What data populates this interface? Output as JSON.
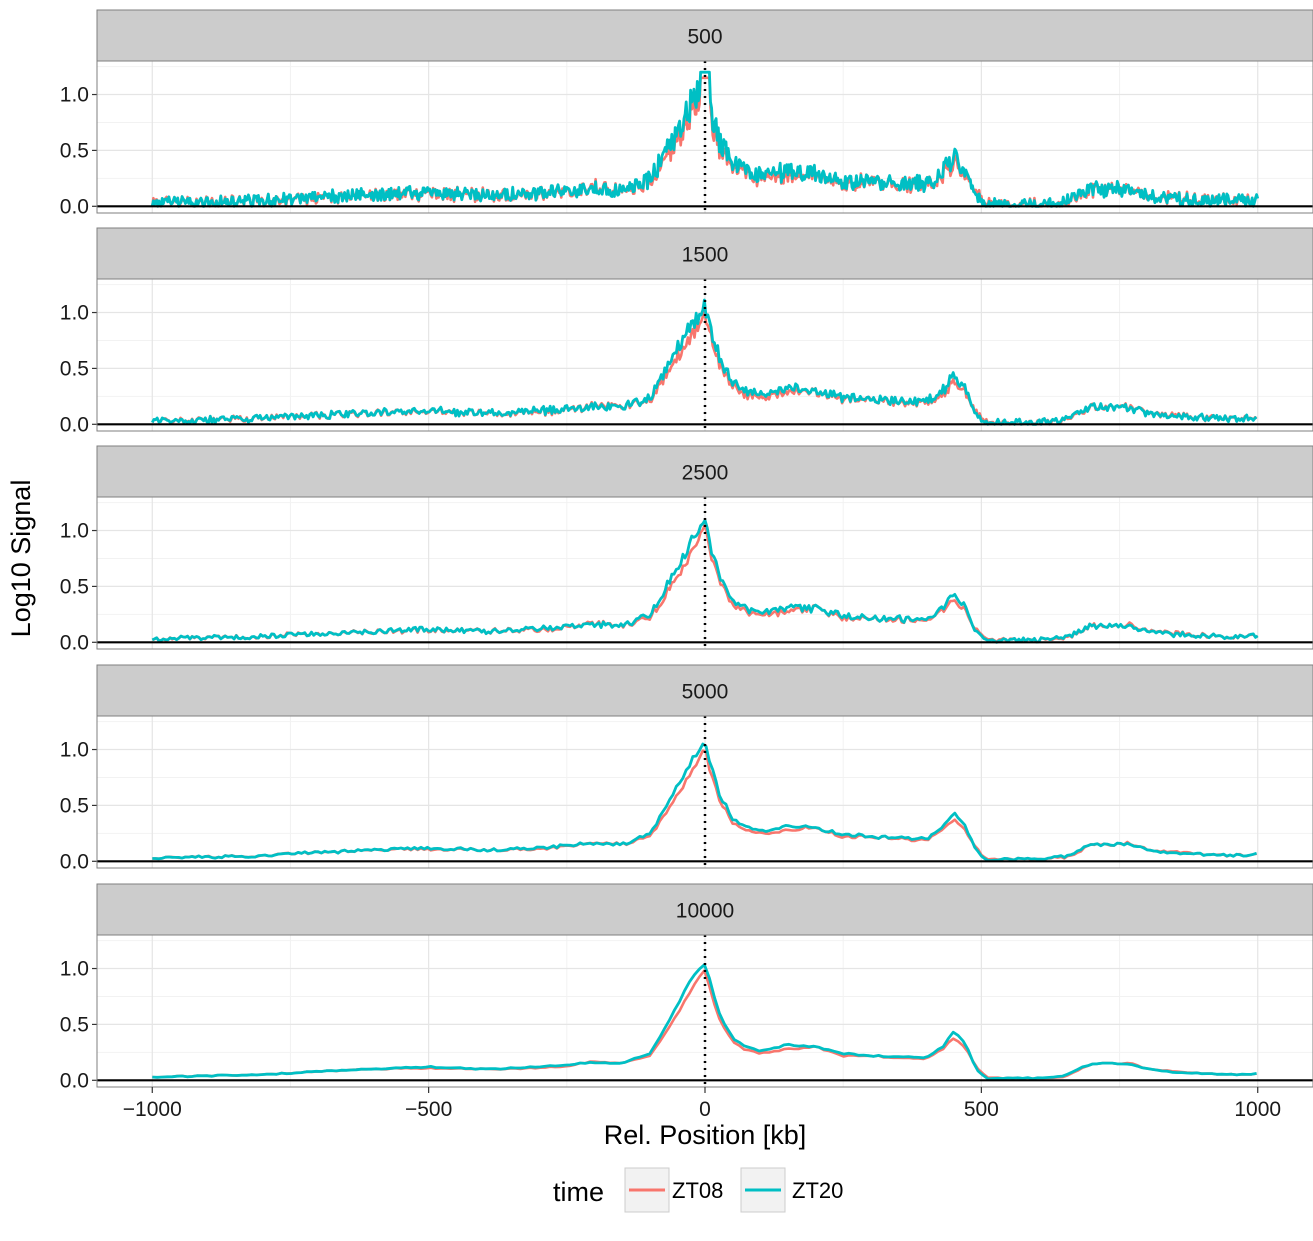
{
  "chart_data": {
    "type": "line",
    "facets": [
      "500",
      "1500",
      "2500",
      "5000",
      "10000"
    ],
    "xlabel": "Rel. Position [kb]",
    "ylabel": "Log10 Signal",
    "xlim": [
      -1100,
      1100
    ],
    "ylim": [
      -0.06,
      1.3
    ],
    "x_ticks": [
      -1000,
      -500,
      0,
      500,
      1000
    ],
    "x_tick_labels": [
      "−1000",
      "−500",
      "0",
      "500",
      "1000"
    ],
    "y_ticks": [
      0.0,
      0.5,
      1.0
    ],
    "y_tick_labels": [
      "0.0",
      "0.5",
      "1.0"
    ],
    "reference_lines": {
      "horizontal_y": 0,
      "vertical_x": 0
    },
    "legend": {
      "title": "time",
      "position": "bottom",
      "entries": [
        "ZT08",
        "ZT20"
      ]
    },
    "series": [
      {
        "name": "ZT08",
        "color": "#F8766D"
      },
      {
        "name": "ZT20",
        "color": "#00BFC4"
      }
    ],
    "profile": {
      "x": [
        -1000,
        -900,
        -800,
        -700,
        -600,
        -500,
        -400,
        -300,
        -250,
        -200,
        -150,
        -100,
        -75,
        -50,
        -25,
        0,
        10,
        25,
        50,
        75,
        100,
        150,
        200,
        250,
        300,
        350,
        400,
        430,
        450,
        470,
        490,
        510,
        550,
        600,
        650,
        680,
        700,
        750,
        770,
        800,
        850,
        900,
        950,
        1000
      ],
      "ZT08": [
        0.03,
        0.04,
        0.05,
        0.08,
        0.1,
        0.11,
        0.1,
        0.11,
        0.13,
        0.17,
        0.15,
        0.22,
        0.4,
        0.6,
        0.8,
        1.0,
        0.8,
        0.55,
        0.35,
        0.27,
        0.24,
        0.28,
        0.3,
        0.22,
        0.22,
        0.2,
        0.19,
        0.28,
        0.38,
        0.3,
        0.12,
        0.02,
        0.02,
        0.02,
        0.03,
        0.1,
        0.15,
        0.15,
        0.16,
        0.1,
        0.08,
        0.06,
        0.05,
        0.06
      ],
      "ZT20": [
        0.03,
        0.04,
        0.05,
        0.08,
        0.1,
        0.12,
        0.1,
        0.12,
        0.14,
        0.16,
        0.15,
        0.24,
        0.45,
        0.68,
        0.9,
        1.05,
        0.88,
        0.6,
        0.38,
        0.3,
        0.26,
        0.32,
        0.3,
        0.24,
        0.22,
        0.21,
        0.2,
        0.3,
        0.44,
        0.34,
        0.1,
        0.01,
        0.02,
        0.02,
        0.04,
        0.11,
        0.15,
        0.15,
        0.15,
        0.1,
        0.07,
        0.06,
        0.05,
        0.06
      ]
    },
    "resolution_note_values": [
      500,
      1500,
      2500,
      5000,
      10000
    ]
  }
}
